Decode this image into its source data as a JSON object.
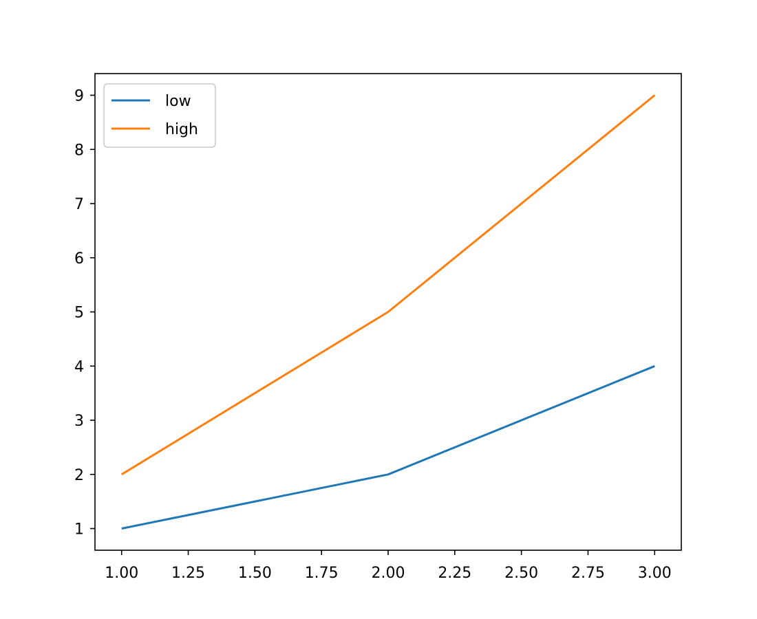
{
  "chart_data": {
    "type": "line",
    "title": "",
    "xlabel": "",
    "ylabel": "",
    "x": [
      1,
      2,
      3
    ],
    "series": [
      {
        "name": "low",
        "values": [
          1,
          2,
          4
        ],
        "color": "#1f77b4"
      },
      {
        "name": "high",
        "values": [
          2,
          5,
          9
        ],
        "color": "#ff7f0e"
      }
    ],
    "xlim": [
      0.9,
      3.1
    ],
    "ylim": [
      0.6,
      9.4
    ],
    "xticks": [
      1.0,
      1.25,
      1.5,
      1.75,
      2.0,
      2.25,
      2.5,
      2.75,
      3.0
    ],
    "xtick_labels": [
      "1.00",
      "1.25",
      "1.50",
      "1.75",
      "2.00",
      "2.25",
      "2.50",
      "2.75",
      "3.00"
    ],
    "yticks": [
      1,
      2,
      3,
      4,
      5,
      6,
      7,
      8,
      9
    ],
    "ytick_labels": [
      "1",
      "2",
      "3",
      "4",
      "5",
      "6",
      "7",
      "8",
      "9"
    ],
    "grid": false,
    "legend": "top-left"
  }
}
